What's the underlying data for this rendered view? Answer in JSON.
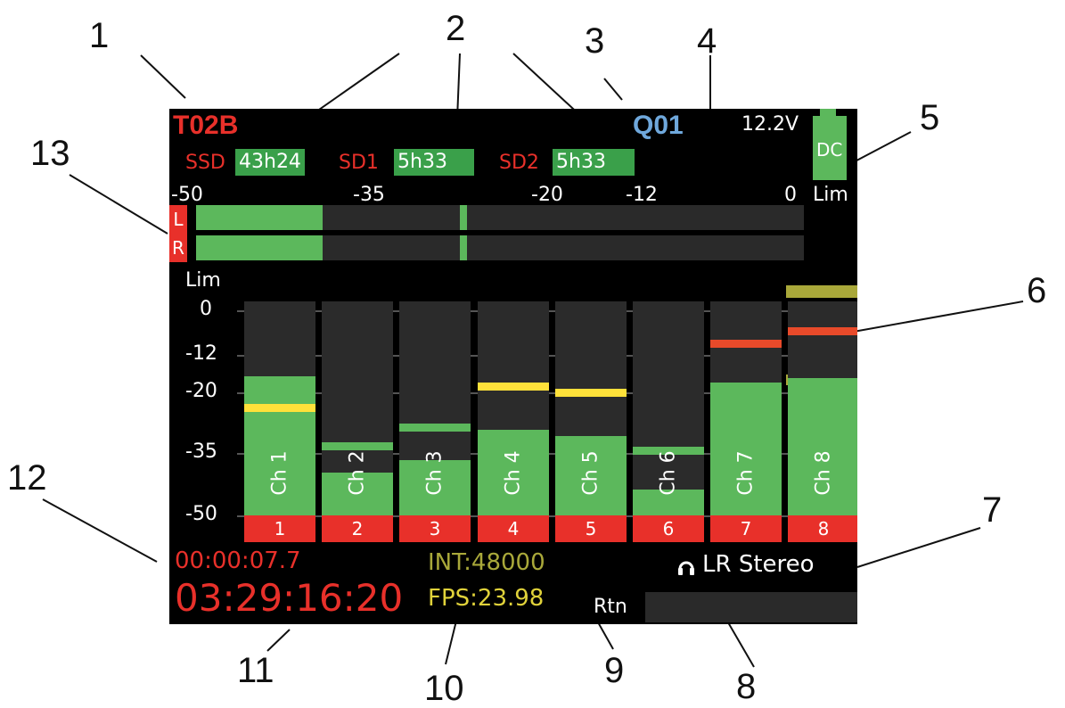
{
  "callouts": [
    "1",
    "2",
    "3",
    "4",
    "5",
    "6",
    "7",
    "8",
    "9",
    "10",
    "11",
    "12",
    "13"
  ],
  "screen": {
    "take": "T02B",
    "scene": "Q01",
    "voltage": "12.2V",
    "power": "DC",
    "media": [
      {
        "label": "SSD",
        "value": "43h24"
      },
      {
        "label": "SD1",
        "value": "5h33"
      },
      {
        "label": "SD2",
        "value": "5h33"
      }
    ],
    "meter_scale": [
      "-50",
      "-35",
      "-20",
      "-12",
      "0",
      "Lim"
    ],
    "lr": [
      "L",
      "R"
    ],
    "y_scale": [
      "Lim",
      "0",
      "-12",
      "-20",
      "-35",
      "-50"
    ],
    "channels": [
      {
        "label": "Ch 1",
        "num": "1",
        "level": 0.65,
        "peak": 0.52,
        "peak_color": "#ffe13a"
      },
      {
        "label": "Ch 2",
        "num": "2",
        "level": 0.2,
        "peak": 0.34,
        "peak_color": "#5cb85c"
      },
      {
        "label": "Ch 3",
        "num": "3",
        "level": 0.26,
        "peak": 0.43,
        "peak_color": "#5cb85c"
      },
      {
        "label": "Ch 4",
        "num": "4",
        "level": 0.4,
        "peak": 0.62,
        "peak_color": "#ffe13a"
      },
      {
        "label": "Ch 5",
        "num": "5",
        "level": 0.37,
        "peak": 0.59,
        "peak_color": "#ffe13a"
      },
      {
        "label": "Ch 6",
        "num": "6",
        "level": 0.12,
        "peak": 0.32,
        "peak_color": "#5cb85c"
      },
      {
        "label": "Ch 7",
        "num": "7",
        "level": 0.62,
        "peak": 0.82,
        "peak_color": "#e84a2a"
      },
      {
        "label": "Ch 8",
        "num": "8",
        "level": 0.64,
        "peak": 0.88,
        "peak_color": "#e84a2a"
      }
    ],
    "timecode_small": "00:00:07.7",
    "timecode": "03:29:16:20",
    "sample_rate": "INT:48000",
    "fps": "FPS:23.98",
    "headphone": "LR Stereo",
    "rtn": "Rtn"
  }
}
